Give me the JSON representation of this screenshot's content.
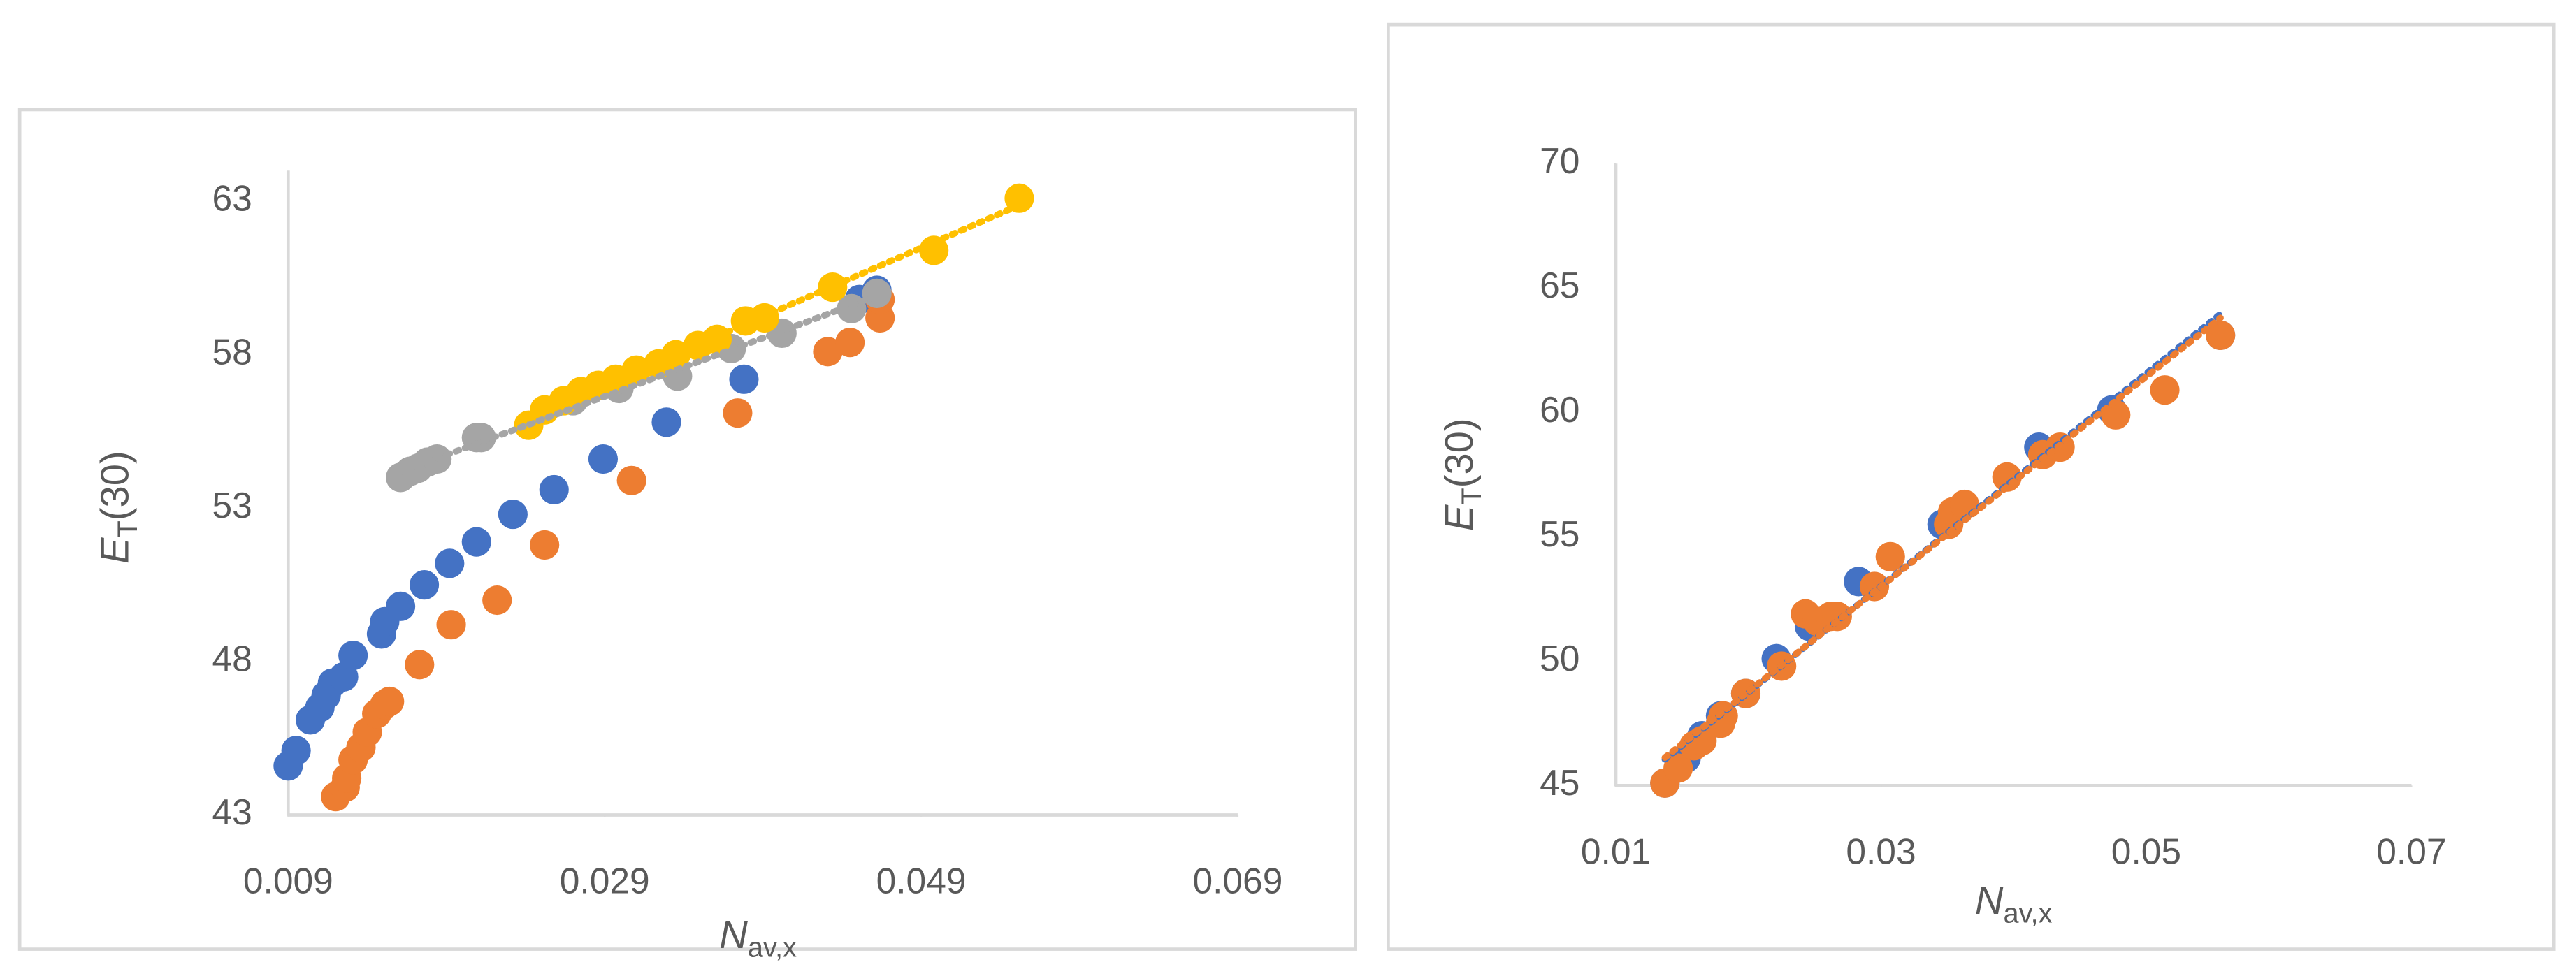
{
  "chart_data": [
    {
      "type": "scatter",
      "xlabel": {
        "main": "N",
        "sub": "av,x"
      },
      "ylabel": {
        "main": "E",
        "sub": "T",
        "rest": "(30)"
      },
      "xlim": [
        0.009,
        0.069
      ],
      "xticks": [
        0.009,
        0.029,
        0.049,
        0.069
      ],
      "ylim": [
        43,
        64
      ],
      "yticks": [
        43,
        48,
        53,
        58,
        63
      ],
      "series": [
        {
          "color": "#4472c4",
          "x": [
            0.009,
            0.0095,
            0.0104,
            0.011,
            0.0114,
            0.0118,
            0.0125,
            0.0131,
            0.0149,
            0.0151,
            0.0161,
            0.0176,
            0.0192,
            0.0209,
            0.0232,
            0.0258,
            0.0289,
            0.0329,
            0.0378,
            0.0451,
            0.0462
          ],
          "values": [
            44.6,
            45.1,
            46.1,
            46.5,
            46.9,
            47.3,
            47.5,
            48.2,
            48.9,
            49.3,
            49.8,
            50.5,
            51.2,
            51.9,
            52.8,
            53.6,
            54.6,
            55.8,
            57.2,
            59.8,
            60.1
          ]
        },
        {
          "color": "#ed7d31",
          "x": [
            0.012,
            0.0126,
            0.0127,
            0.0131,
            0.0136,
            0.014,
            0.0146,
            0.0151,
            0.0154,
            0.0173,
            0.0193,
            0.0222,
            0.0252,
            0.0307,
            0.0374,
            0.0431,
            0.0445,
            0.0464,
            0.0464
          ],
          "values": [
            43.6,
            43.9,
            44.2,
            44.8,
            45.2,
            45.7,
            46.3,
            46.6,
            46.7,
            47.9,
            49.2,
            50.0,
            51.8,
            53.9,
            56.1,
            58.1,
            58.4,
            59.2,
            59.8
          ]
        },
        {
          "color": "#a5a5a5",
          "trendline": "linear",
          "x": [
            0.0161,
            0.0167,
            0.0172,
            0.0178,
            0.0184,
            0.0209,
            0.0212,
            0.027,
            0.0299,
            0.0336,
            0.037,
            0.0402,
            0.0446,
            0.0462
          ],
          "values": [
            54.0,
            54.2,
            54.3,
            54.5,
            54.6,
            55.3,
            55.3,
            56.5,
            56.9,
            57.3,
            58.2,
            58.7,
            59.5,
            60.0
          ]
        },
        {
          "color": "#ffc000",
          "trendline": "linear",
          "x": [
            0.0242,
            0.0252,
            0.0264,
            0.0275,
            0.0286,
            0.0297,
            0.031,
            0.0324,
            0.0335,
            0.0349,
            0.0361,
            0.0379,
            0.0391,
            0.0434,
            0.0498,
            0.0552
          ],
          "values": [
            55.7,
            56.2,
            56.5,
            56.8,
            57.0,
            57.2,
            57.5,
            57.7,
            58.0,
            58.3,
            58.5,
            59.1,
            59.2,
            60.2,
            61.4,
            63.1
          ]
        }
      ]
    },
    {
      "type": "scatter",
      "xlabel": {
        "main": "N",
        "sub": "av,x"
      },
      "ylabel": {
        "main": "E",
        "sub": "T",
        "rest": "(30)"
      },
      "xlim": [
        0.01,
        0.07
      ],
      "xticks": [
        0.01,
        0.03,
        0.05,
        0.07
      ],
      "ylim": [
        45,
        70
      ],
      "yticks": [
        45,
        50,
        55,
        60,
        65,
        70
      ],
      "series": [
        {
          "color": "#4472c4",
          "trendline": "linear",
          "x": [
            0.0137,
            0.0153,
            0.0165,
            0.0179,
            0.0198,
            0.0221,
            0.0246,
            0.0283,
            0.0346,
            0.0419,
            0.0474,
            0.0556
          ],
          "values": [
            45.1,
            46.1,
            47.0,
            47.8,
            48.7,
            50.1,
            51.4,
            53.2,
            55.5,
            58.6,
            60.1,
            63.1
          ]
        },
        {
          "color": "#ed7d31",
          "trendline": "linear",
          "x": [
            0.0137,
            0.0147,
            0.0159,
            0.0165,
            0.0179,
            0.0181,
            0.0198,
            0.0225,
            0.0243,
            0.0252,
            0.0262,
            0.0267,
            0.0295,
            0.0307,
            0.0351,
            0.0354,
            0.0363,
            0.0395,
            0.0422,
            0.0435,
            0.0477,
            0.0514,
            0.0556
          ],
          "values": [
            45.1,
            45.7,
            46.6,
            46.8,
            47.5,
            47.8,
            48.7,
            49.8,
            51.9,
            51.6,
            51.8,
            51.8,
            53.0,
            54.2,
            55.5,
            56.0,
            56.3,
            57.4,
            58.3,
            58.6,
            59.9,
            60.9,
            63.1
          ]
        }
      ]
    }
  ]
}
